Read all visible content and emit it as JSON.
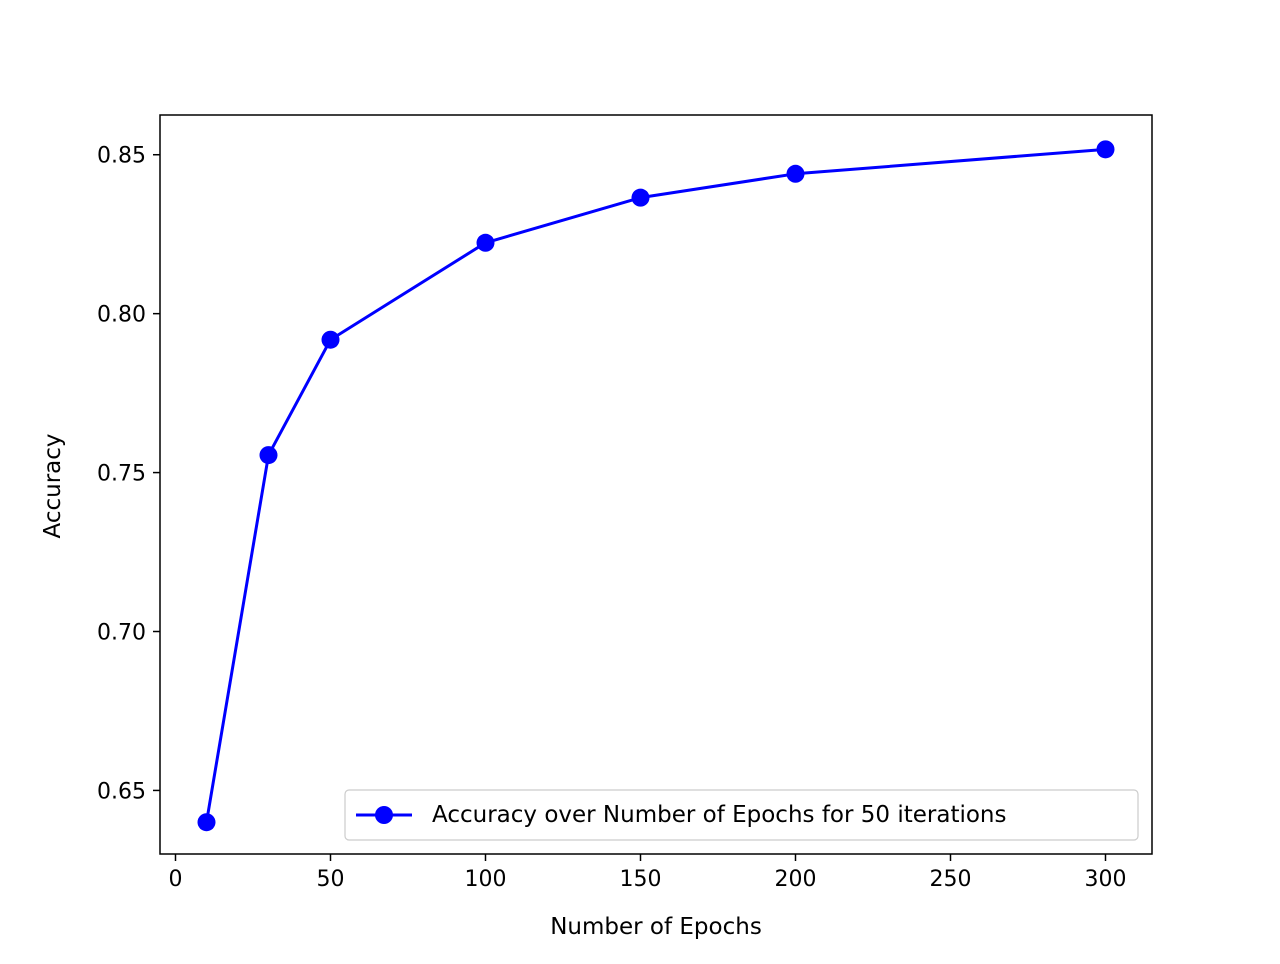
{
  "chart_data": {
    "type": "line",
    "title": "",
    "xlabel": "Number of Epochs",
    "ylabel": "Accuracy",
    "xlim": [
      -5,
      315
    ],
    "ylim": [
      0.63,
      0.8625
    ],
    "xticks": [
      0,
      50,
      100,
      150,
      200,
      250,
      300
    ],
    "xtick_labels": [
      "0",
      "50",
      "100",
      "150",
      "200",
      "250",
      "300"
    ],
    "yticks": [
      0.65,
      0.7,
      0.75,
      0.8,
      0.85
    ],
    "ytick_labels": [
      "0.65",
      "0.70",
      "0.75",
      "0.80",
      "0.85"
    ],
    "grid": false,
    "legend_position": "lower-right",
    "series": [
      {
        "name": "Accuracy over Number of Epochs for 50 iterations",
        "color": "#0000ff",
        "marker": "circle",
        "x": [
          10,
          30,
          50,
          100,
          150,
          200,
          300
        ],
        "y": [
          0.64,
          0.7555,
          0.7918,
          0.8223,
          0.8365,
          0.844,
          0.8517
        ]
      }
    ]
  }
}
